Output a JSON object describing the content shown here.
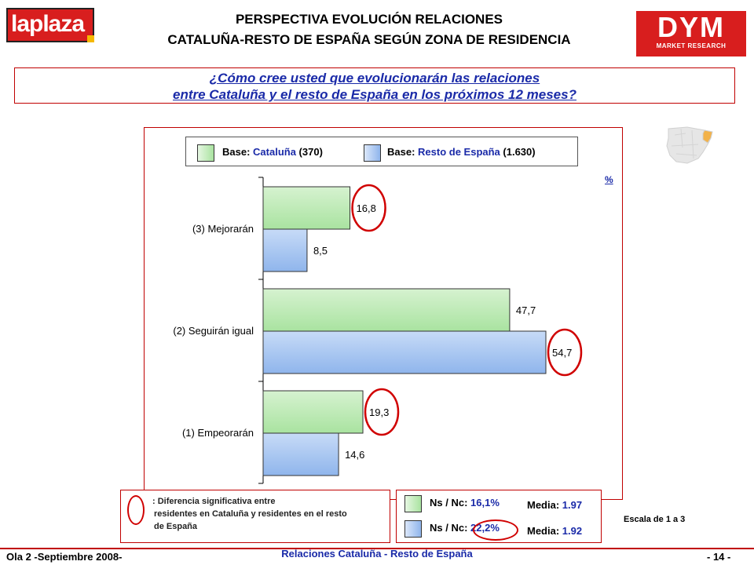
{
  "header": {
    "line1": "PERSPECTIVA EVOLUCIÓN RELACIONES",
    "line2": "CATALUÑA-RESTO DE ESPAÑA SEGÚN ZONA DE RESIDENCIA"
  },
  "logos": {
    "left": "laplaza",
    "right_big": "DYM",
    "right_small": "MARKET RESEARCH"
  },
  "question": {
    "line1": "¿Cómo cree usted que evolucionarán las relaciones",
    "line2": "entre Cataluña y el resto de España en los próximos 12 meses?"
  },
  "legend": {
    "series1_prefix": "Base: ",
    "series1_name": "Cataluña",
    "series1_count": " (370)",
    "series2_prefix": "Base: ",
    "series2_name": "Resto de España",
    "series2_count": " (1.630)"
  },
  "percent_mark": "%",
  "colors": {
    "cataluna": "#a9e3a0",
    "resto": "#8fb5ec",
    "accent": "#c00000",
    "blue_text": "#1a2aa8"
  },
  "chart_data": {
    "type": "bar",
    "orientation": "horizontal",
    "categories": [
      "(3) Mejorarán",
      "(2) Seguirán igual",
      "(1) Empeorarán"
    ],
    "series": [
      {
        "name": "Cataluña",
        "values": [
          16.8,
          47.7,
          19.3
        ],
        "labels": [
          "16,8",
          "47,7",
          "19,3"
        ]
      },
      {
        "name": "Resto de España",
        "values": [
          8.5,
          54.7,
          14.6
        ],
        "labels": [
          "8,5",
          "54,7",
          "14,6"
        ]
      }
    ],
    "highlighted": [
      {
        "category": 0,
        "series": 0
      },
      {
        "category": 1,
        "series": 1
      },
      {
        "category": 2,
        "series": 0
      }
    ],
    "xlim": [
      0,
      60
    ],
    "unit": "%",
    "grid": false,
    "legend_position": "top"
  },
  "significance_note": {
    "line1": ": Diferencia significativa entre",
    "line2": "residentes en Cataluña y residentes en el resto",
    "line3": "de España"
  },
  "nsnc": {
    "row1_prefix": "Ns / Nc: ",
    "row1_value": "16,1%",
    "row1_media_prefix": "Media: ",
    "row1_media_value": "1.97",
    "row2_prefix": "Ns / Nc: ",
    "row2_value": "22,2%",
    "row2_media_prefix": "Media: ",
    "row2_media_value": "1.92"
  },
  "scale_note": "Escala de 1 a 3",
  "footer": {
    "left": "Ola 2 -Septiembre 2008-",
    "center": "Relaciones Cataluña - Resto de España",
    "right": "- 14 -"
  }
}
